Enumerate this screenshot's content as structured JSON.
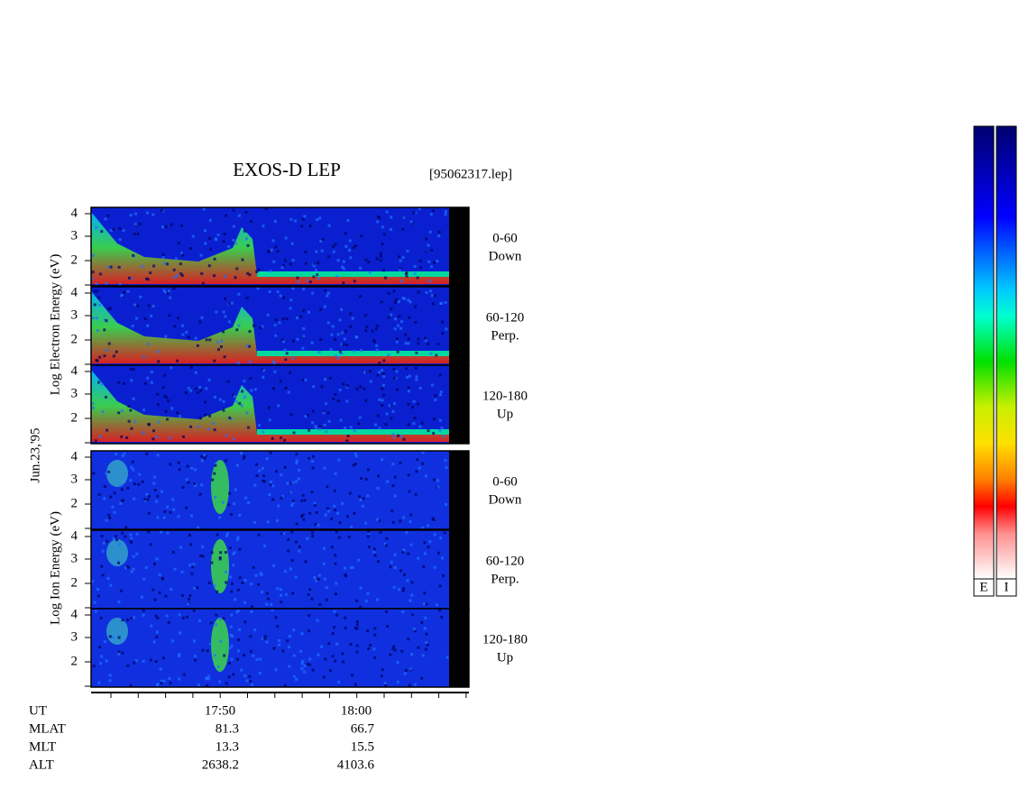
{
  "title": "EXOS-D LEP",
  "file": "[95062317.lep]",
  "date": "Jun.23,'95",
  "electron_axis_label": "Log Electron Energy (eV)",
  "ion_axis_label": "Log Ion Energy (eV)",
  "panel_ticks": [
    "4",
    "3",
    "2"
  ],
  "panels": [
    {
      "range": "0-60",
      "dir": "Down"
    },
    {
      "range": "60-120",
      "dir": "Perp."
    },
    {
      "range": "120-180",
      "dir": "Up"
    },
    {
      "range": "0-60",
      "dir": "Down"
    },
    {
      "range": "60-120",
      "dir": "Perp."
    },
    {
      "range": "120-180",
      "dir": "Up"
    }
  ],
  "x_ticks": [
    "17:50",
    "18:00"
  ],
  "rows": [
    {
      "name": "UT"
    },
    {
      "name": "MLAT",
      "values": [
        "81.3",
        "66.7"
      ]
    },
    {
      "name": "MLT",
      "values": [
        "13.3",
        "15.5"
      ]
    },
    {
      "name": "ALT",
      "values": [
        "2638.2",
        "4103.6"
      ]
    }
  ],
  "colorbar_labels": [
    "E",
    "I"
  ]
}
